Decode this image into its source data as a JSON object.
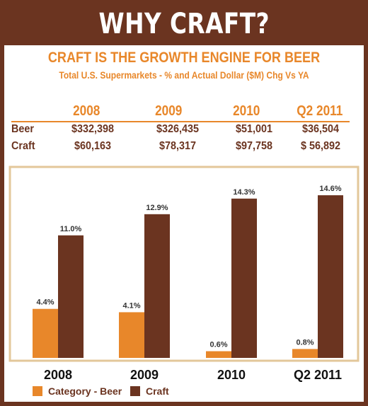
{
  "header": {
    "title": "WHY CRAFT?"
  },
  "subtitle": {
    "main": "CRAFT IS THE GROWTH ENGINE FOR BEER",
    "sub": "Total U.S. Supermarkets - % and Actual Dollar ($M) Chg Vs YA"
  },
  "table": {
    "columns": [
      "2008",
      "2009",
      "2010",
      "Q2 2011"
    ],
    "rows": [
      {
        "label": "Beer",
        "values": [
          "$332,398",
          "$326,435",
          "$51,001",
          "$36,504"
        ]
      },
      {
        "label": "Craft",
        "values": [
          "$60,163",
          "$78,317",
          "$97,758",
          "$ 56,892"
        ]
      }
    ]
  },
  "colors": {
    "brown": "#6b3420",
    "orange": "#e8872a"
  },
  "chart_data": {
    "type": "bar",
    "categories": [
      "2008",
      "2009",
      "2010",
      "Q2 2011"
    ],
    "series": [
      {
        "name": "Category - Beer",
        "values": [
          4.4,
          4.1,
          0.6,
          0.8
        ],
        "labels": [
          "4.4%",
          "4.1%",
          "0.6%",
          "0.8%"
        ],
        "color": "#e8872a"
      },
      {
        "name": "Craft",
        "values": [
          11.0,
          12.9,
          14.3,
          14.6
        ],
        "labels": [
          "11.0%",
          "12.9%",
          "14.3%",
          "14.6%"
        ],
        "color": "#6b3420"
      }
    ],
    "ylim": [
      0,
      16
    ],
    "grid": false,
    "legend": "bottom-left"
  }
}
